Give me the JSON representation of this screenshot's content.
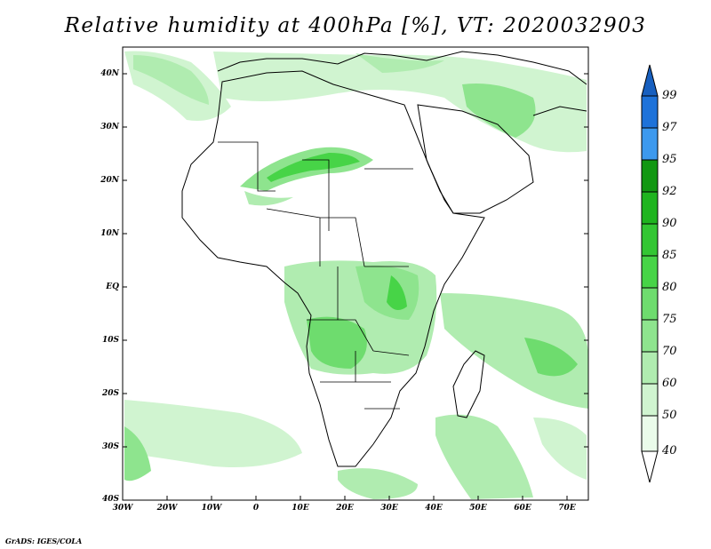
{
  "title": "Relative humidity at 400hPa [%], VT: 2020032903",
  "credit": "GrADS: IGES/COLA",
  "map": {
    "lat_labels": [
      "40N",
      "30N",
      "20N",
      "10N",
      "EQ",
      "10S",
      "20S",
      "30S",
      "40S"
    ],
    "lon_labels": [
      "30W",
      "20W",
      "10W",
      "0",
      "10E",
      "20E",
      "30E",
      "40E",
      "50E",
      "60E",
      "70E"
    ]
  },
  "colorbar": {
    "labels": [
      "99",
      "97",
      "95",
      "92",
      "90",
      "85",
      "80",
      "75",
      "70",
      "60",
      "50",
      "40"
    ],
    "colors": {
      "95-97": "#3d99ee",
      "97-99": "#1e72d9",
      "99+": "#175fbf",
      "92-95": "#129712",
      "90-92": "#1fb41f",
      "85-90": "#33c633",
      "80-85": "#47d447",
      "75-80": "#6edc6e",
      "70-75": "#8ee48e",
      "60-70": "#b0ecb0",
      "50-60": "#d0f4d0",
      "40-50": "#eafbea"
    }
  }
}
